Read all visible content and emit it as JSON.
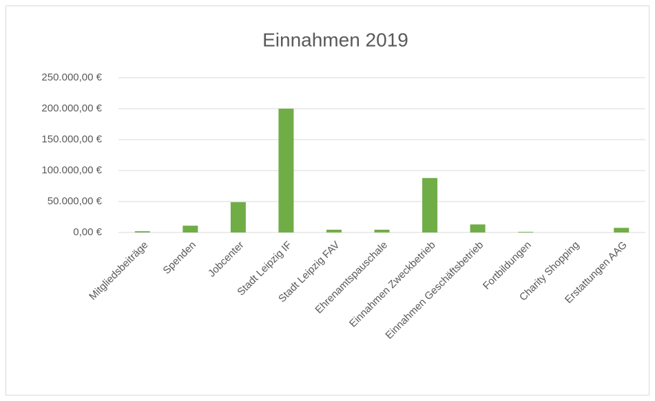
{
  "chart_data": {
    "type": "bar",
    "title": "Einnahmen 2019",
    "categories": [
      "Mitgliedsbeiträge",
      "Spenden",
      "Jobcenter",
      "Stadt Leipzig IF",
      "Stadt Leipzig FAV",
      "Ehrenamtspauschale",
      "Einnahmen Zweckbetrieb",
      "Einnahmen Geschäftsbetrieb",
      "Fortbildungen",
      "Charity Shopping",
      "Erstattungen AAG"
    ],
    "values": [
      2000,
      11000,
      49000,
      200000,
      4500,
      4500,
      88000,
      13000,
      1000,
      0,
      7500
    ],
    "color": "#70ad47",
    "ylim": [
      0,
      250000
    ],
    "yticks": [
      {
        "value": 0,
        "label": "0,00 €"
      },
      {
        "value": 50000,
        "label": "50.000,00 €"
      },
      {
        "value": 100000,
        "label": "100.000,00 €"
      },
      {
        "value": 150000,
        "label": "150.000,00 €"
      },
      {
        "value": 200000,
        "label": "200.000,00 €"
      },
      {
        "value": 250000,
        "label": "250.000,00 €"
      }
    ],
    "grid": true
  }
}
